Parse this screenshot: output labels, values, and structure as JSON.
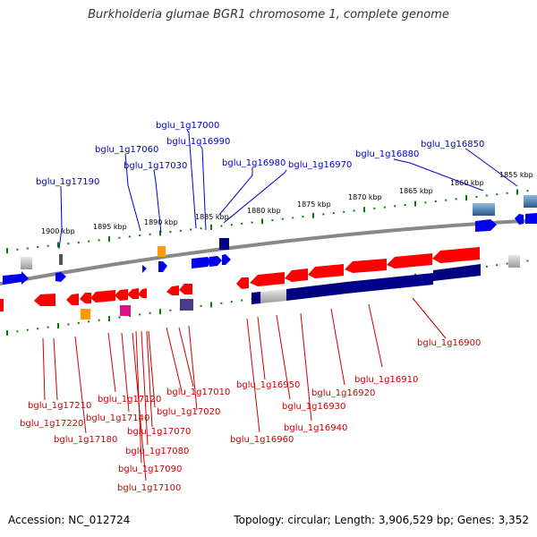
{
  "title": "Burkholderia glumae BGR1 chromosome 1, complete genome",
  "footer": {
    "accession": "Accession: NC_012724",
    "topology": "Topology: circular; Length: 3,906,529 bp; Genes: 3,352"
  },
  "colors": {
    "forward_strand": "#ff0000",
    "reverse_strand": "#0000ee",
    "forward_label": "#cc0000",
    "reverse_label": "#0000cc",
    "backbone": "#808080",
    "scale_ticks": "#008000",
    "dark_gene": "#000080"
  },
  "scale_labels": [
    "1900 kbp",
    "1895 kbp",
    "1890 kbp",
    "1885 kbp",
    "1880 kbp",
    "1875 kbp",
    "1870 kbp",
    "1865 kbp",
    "1860 kbp",
    "1855 kbp"
  ],
  "top_labels": [
    "bglu_1g17190",
    "bglu_1g17060",
    "bglu_1g17030",
    "bglu_1g17000",
    "bglu_1g16990",
    "bglu_1g16980",
    "bglu_1g16970",
    "bglu_1g16880",
    "bglu_1g16850"
  ],
  "bottom_labels": [
    "bglu_1g16900",
    "bglu_1g16910",
    "bglu_1g16920",
    "bglu_1g16930",
    "bglu_1g16940",
    "bglu_1g16950",
    "bglu_1g16960",
    "bglu_1g17010",
    "bglu_1g17020",
    "bglu_1g17070",
    "bglu_1g17080",
    "bglu_1g17090",
    "bglu_1g17100",
    "bglu_1g17120",
    "bglu_1g17140",
    "bglu_1g17180",
    "bglu_1g17210",
    "bglu_1g17220"
  ]
}
